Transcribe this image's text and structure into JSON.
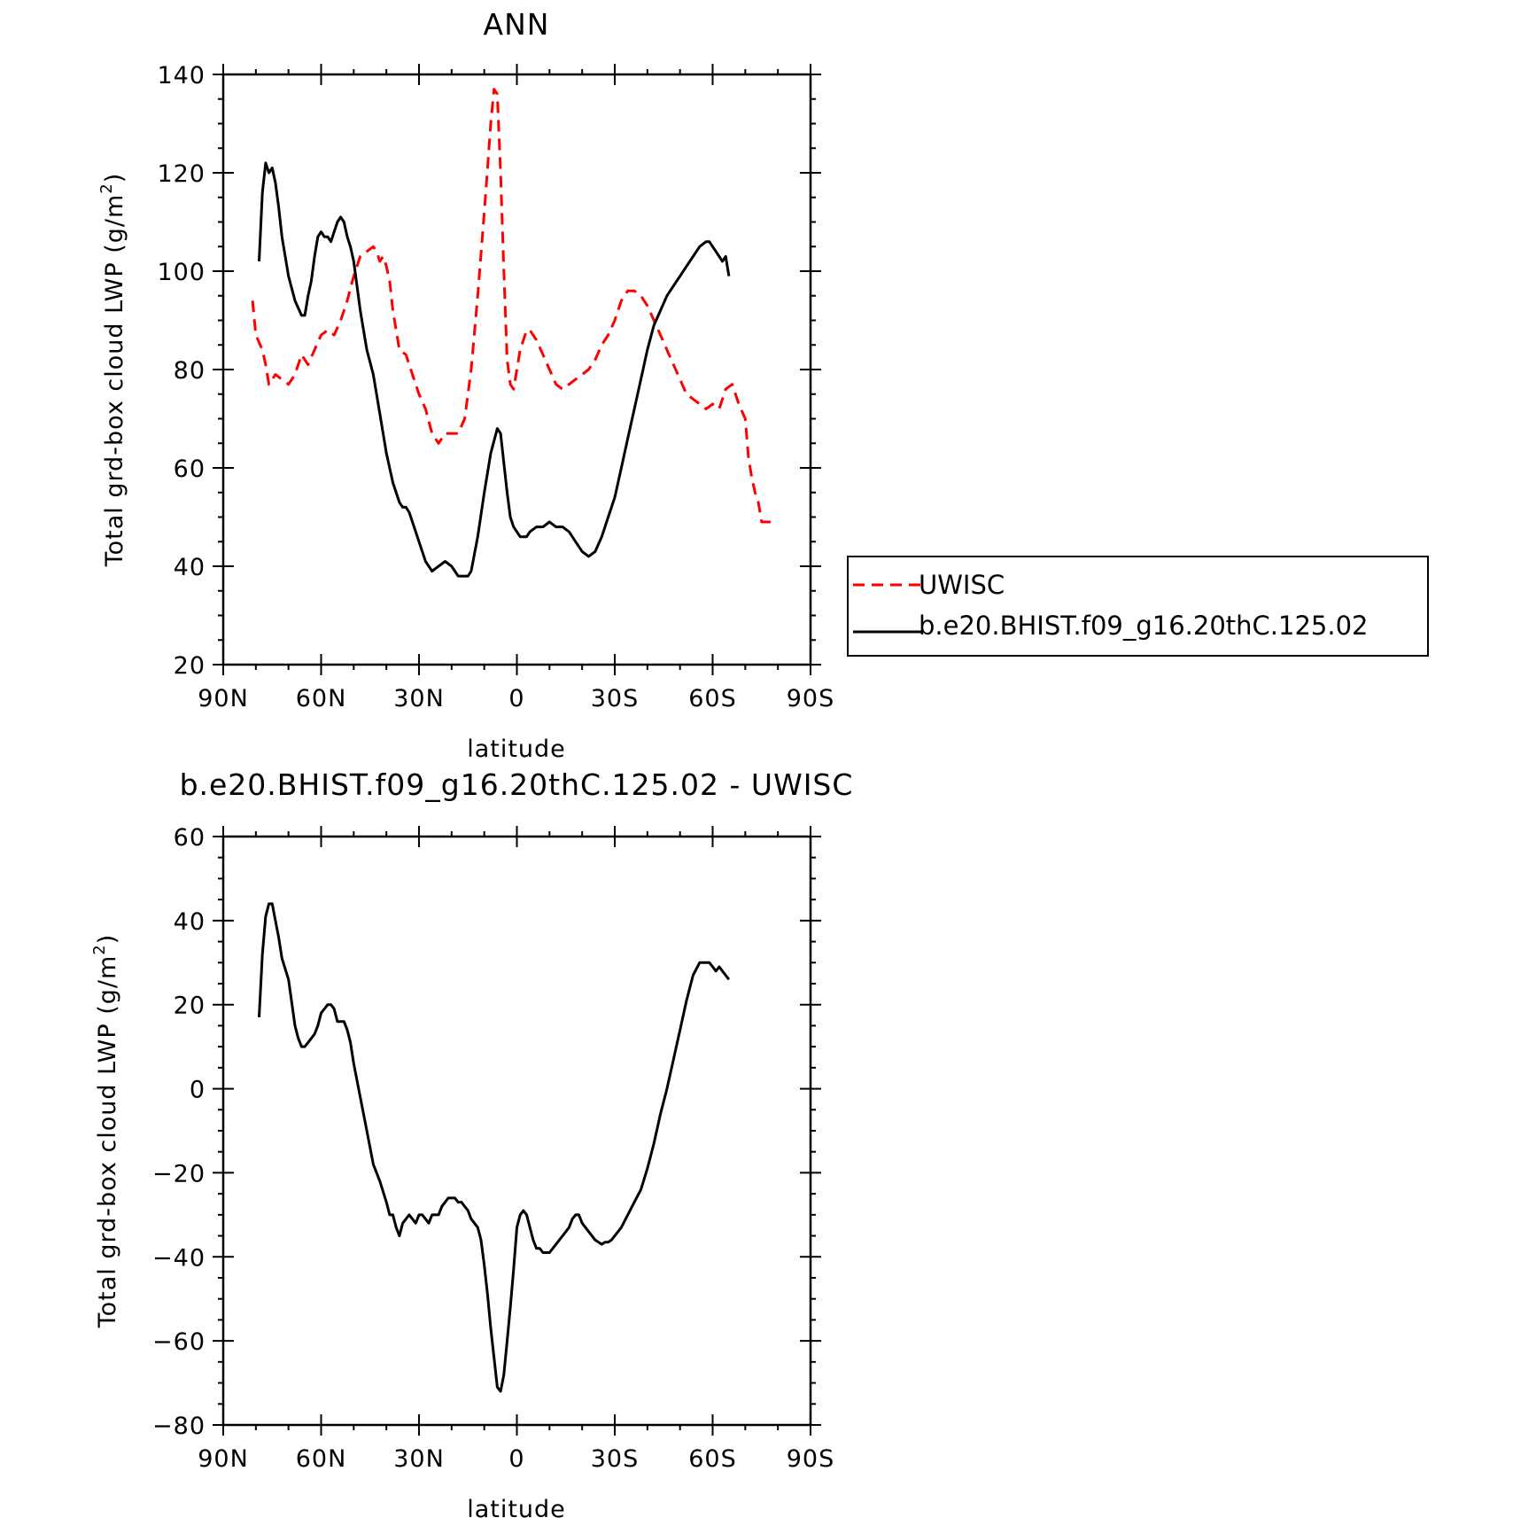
{
  "chart_data": [
    {
      "type": "line",
      "title": "ANN",
      "xlabel": "latitude",
      "ylabel": "Total grd-box cloud LWP (g/m",
      "ylabel_sup": "2",
      "ylabel_end": ")",
      "xlim": [
        90,
        -90
      ],
      "ylim": [
        20,
        140
      ],
      "x_ticks": [
        90,
        60,
        30,
        0,
        -30,
        -60,
        -90
      ],
      "x_tick_labels": [
        "90N",
        "60N",
        "30N",
        "0",
        "30S",
        "60S",
        "90S"
      ],
      "y_ticks": [
        20,
        40,
        60,
        80,
        100,
        120,
        140
      ],
      "y_tick_labels": [
        "20",
        "40",
        "60",
        "80",
        "100",
        "120",
        "140"
      ],
      "legend_position": "right",
      "series": [
        {
          "name": "UWISC",
          "color": "#ff0000",
          "dash": "dashed",
          "x": [
            81,
            80,
            78,
            77,
            76,
            74,
            72,
            70,
            68,
            66,
            64,
            62,
            60,
            58,
            56,
            54,
            52,
            50,
            48,
            46,
            44,
            43,
            42,
            41,
            40,
            39,
            38,
            36,
            34,
            32,
            30,
            28,
            26,
            24,
            22,
            20,
            18,
            16,
            14,
            12,
            10,
            9,
            8,
            7,
            6,
            5,
            4,
            3,
            2,
            1,
            0,
            -1,
            -2,
            -3,
            -4,
            -6,
            -8,
            -10,
            -12,
            -14,
            -16,
            -18,
            -20,
            -22,
            -24,
            -26,
            -28,
            -30,
            -32,
            -34,
            -36,
            -38,
            -40,
            -42,
            -44,
            -46,
            -48,
            -50,
            -52,
            -54,
            -56,
            -58,
            -60,
            -62,
            -64,
            -66,
            -68,
            -70,
            -71,
            -72,
            -73,
            -74,
            -75,
            -76,
            -77,
            -78
          ],
          "y": [
            94,
            87,
            84,
            81,
            77,
            79,
            78,
            77,
            79,
            83,
            81,
            84,
            87,
            88,
            87,
            90,
            94,
            99,
            103,
            104,
            105,
            104,
            102,
            103,
            101,
            98,
            92,
            84,
            83,
            79,
            75,
            72,
            67,
            65,
            67,
            67,
            67,
            70,
            80,
            95,
            112,
            121,
            130,
            137,
            136,
            120,
            100,
            82,
            77,
            76,
            80,
            84,
            86,
            88,
            88,
            86,
            83,
            80,
            77,
            76,
            77,
            78,
            79,
            80,
            82,
            85,
            87,
            90,
            94,
            96,
            96,
            95,
            93,
            90,
            87,
            84,
            81,
            78,
            75,
            74,
            73,
            72,
            73,
            72,
            76,
            77,
            73,
            70,
            62,
            58,
            55,
            53,
            49,
            49,
            49,
            49
          ]
        },
        {
          "name": "b.e20.BHIST.f09_g16.20thC.125.02",
          "color": "#000000",
          "dash": "solid",
          "x": [
            79,
            78,
            77,
            76,
            75,
            74,
            73,
            72,
            70,
            68,
            66,
            65,
            64,
            63,
            62,
            61,
            60,
            59,
            58,
            57,
            56,
            55,
            54,
            53,
            52,
            51,
            50,
            49,
            48,
            46,
            44,
            42,
            40,
            38,
            36,
            35,
            34,
            33,
            32,
            31,
            30,
            28,
            26,
            24,
            22,
            20,
            18,
            16,
            15,
            14,
            12,
            10,
            8,
            6,
            5,
            4,
            3,
            2,
            1,
            0,
            -1,
            -2,
            -3,
            -4,
            -6,
            -8,
            -10,
            -12,
            -14,
            -16,
            -18,
            -20,
            -22,
            -24,
            -26,
            -28,
            -30,
            -32,
            -34,
            -36,
            -38,
            -40,
            -42,
            -44,
            -46,
            -48,
            -50,
            -52,
            -54,
            -56,
            -58,
            -59,
            -60,
            -61,
            -62,
            -63,
            -64,
            -65
          ],
          "y": [
            102,
            116,
            122,
            120,
            121,
            118,
            113,
            107,
            99,
            94,
            91,
            91,
            95,
            98,
            103,
            107,
            108,
            107,
            107,
            106,
            108,
            110,
            111,
            110,
            107,
            105,
            102,
            97,
            92,
            84,
            79,
            71,
            63,
            57,
            53,
            52,
            52,
            51,
            49,
            47,
            45,
            41,
            39,
            40,
            41,
            40,
            38,
            38,
            38,
            39,
            46,
            55,
            63,
            68,
            67,
            61,
            55,
            50,
            48,
            47,
            46,
            46,
            46,
            47,
            48,
            48,
            49,
            48,
            48,
            47,
            45,
            43,
            42,
            43,
            46,
            50,
            54,
            60,
            66,
            72,
            78,
            84,
            89,
            92,
            95,
            97,
            99,
            101,
            103,
            105,
            106,
            106,
            105,
            104,
            103,
            102,
            103,
            99
          ]
        }
      ]
    },
    {
      "type": "line",
      "title": "b.e20.BHIST.f09_g16.20thC.125.02 - UWISC",
      "xlabel": "latitude",
      "ylabel": "Total grd-box cloud LWP (g/m",
      "ylabel_sup": "2",
      "ylabel_end": ")",
      "xlim": [
        90,
        -90
      ],
      "ylim": [
        -80,
        60
      ],
      "x_ticks": [
        90,
        60,
        30,
        0,
        -30,
        -60,
        -90
      ],
      "x_tick_labels": [
        "90N",
        "60N",
        "30N",
        "0",
        "30S",
        "60S",
        "90S"
      ],
      "y_ticks": [
        -80,
        -60,
        -40,
        -20,
        0,
        20,
        40,
        60
      ],
      "y_tick_labels": [
        "-80",
        "-60",
        "-40",
        "-20",
        "0",
        "20",
        "40",
        "60"
      ],
      "series": [
        {
          "color": "#000000",
          "dash": "solid",
          "x": [
            79,
            78,
            77,
            76,
            75,
            74,
            73,
            72,
            70,
            68,
            67,
            66,
            65,
            64,
            63,
            62,
            61,
            60,
            59,
            58,
            57,
            56,
            55,
            54,
            53,
            52,
            51,
            50,
            49,
            48,
            46,
            44,
            42,
            40,
            39,
            38,
            37,
            36,
            35,
            34,
            33,
            32,
            31,
            30,
            29,
            28,
            27,
            26,
            25,
            24,
            23,
            22,
            21,
            20,
            19,
            18,
            17,
            16,
            15,
            14,
            13,
            12,
            11,
            10,
            9,
            8,
            7,
            6,
            5,
            4,
            3,
            2,
            1,
            0,
            -1,
            -2,
            -3,
            -4,
            -5,
            -6,
            -7,
            -8,
            -9,
            -10,
            -11,
            -12,
            -13,
            -14,
            -15,
            -16,
            -17,
            -18,
            -19,
            -20,
            -21,
            -22,
            -23,
            -24,
            -25,
            -26,
            -27,
            -28,
            -29,
            -30,
            -31,
            -32,
            -34,
            -36,
            -38,
            -40,
            -42,
            -44,
            -46,
            -48,
            -50,
            -52,
            -54,
            -56,
            -57,
            -58,
            -59,
            -60,
            -61,
            -62,
            -63,
            -64,
            -65
          ],
          "y": [
            17,
            32,
            41,
            44,
            44,
            40,
            36,
            31,
            26,
            15,
            12,
            10,
            10,
            11,
            12,
            13,
            15,
            18,
            19,
            20,
            20,
            19,
            16,
            16,
            16,
            14,
            11,
            6,
            2,
            -2,
            -10,
            -18,
            -22,
            -27,
            -30,
            -30,
            -33,
            -35,
            -32,
            -31,
            -30,
            -31,
            -32,
            -30,
            -30,
            -31,
            -32,
            -30,
            -30,
            -30,
            -28,
            -27,
            -26,
            -26,
            -26,
            -27,
            -27,
            -28,
            -29,
            -31,
            -32,
            -33,
            -36,
            -42,
            -49,
            -57,
            -64,
            -71,
            -72,
            -68,
            -60,
            -52,
            -43,
            -33,
            -30,
            -29,
            -30,
            -33,
            -36,
            -38,
            -38,
            -39,
            -39,
            -39,
            -38,
            -37,
            -36,
            -35,
            -34,
            -33,
            -31,
            -30,
            -30,
            -32,
            -33,
            -34,
            -35,
            -36,
            -36.5,
            -37,
            -36.5,
            -36.5,
            -36,
            -35,
            -34,
            -33,
            -30,
            -27,
            -24,
            -19,
            -13,
            -6,
            0,
            7,
            14,
            21,
            27,
            30,
            30,
            30,
            30,
            29,
            28,
            29,
            28,
            27,
            26
          ]
        }
      ]
    }
  ]
}
